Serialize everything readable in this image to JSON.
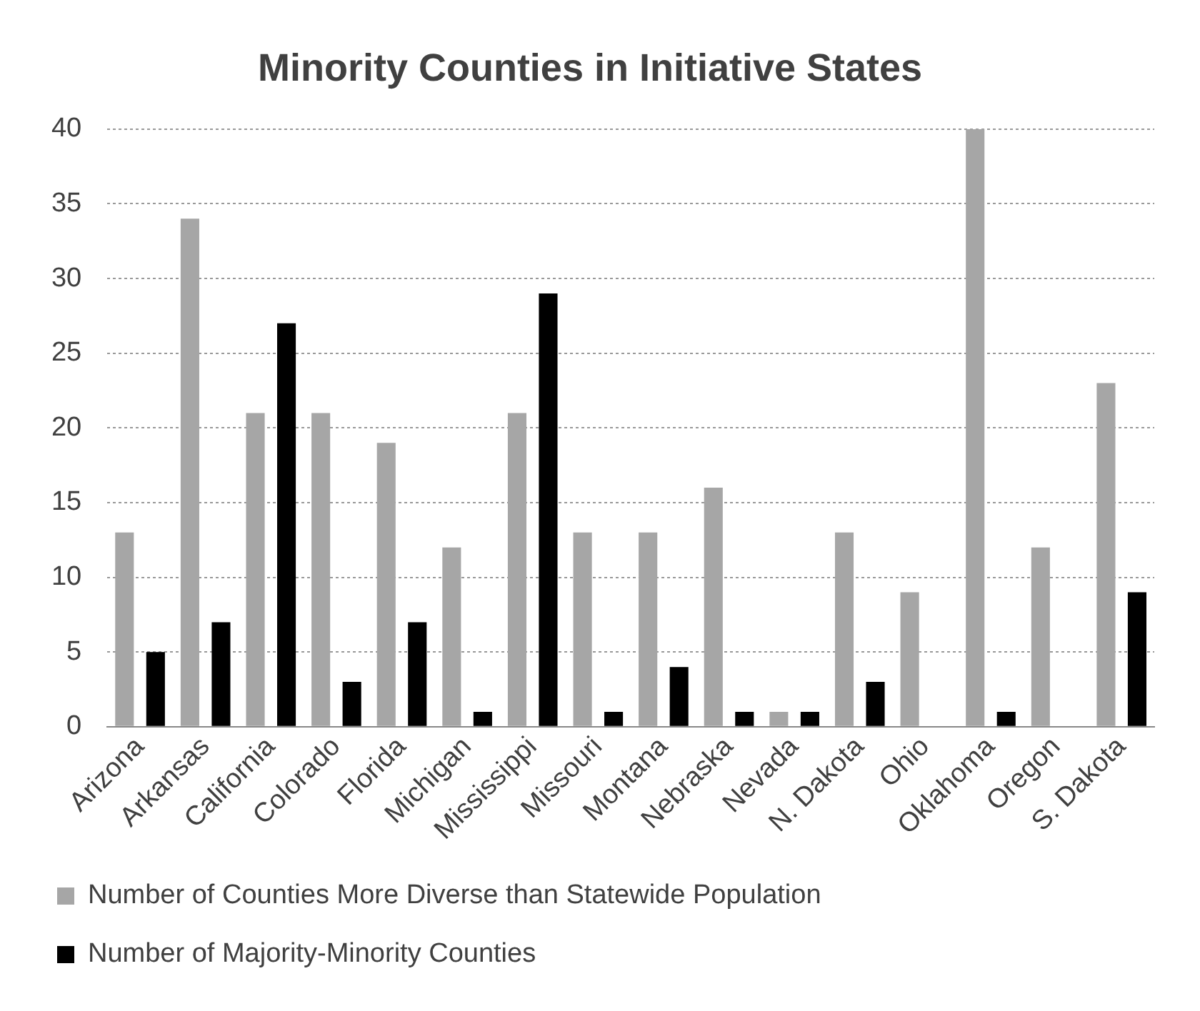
{
  "chart_data": {
    "type": "bar",
    "title": "Minority Counties in Initiative States",
    "categories": [
      "Arizona",
      "Arkansas",
      "California",
      "Colorado",
      "Florida",
      "Michigan",
      "Mississippi",
      "Missouri",
      "Montana",
      "Nebraska",
      "Nevada",
      "N. Dakota",
      "Ohio",
      "Oklahoma",
      "Oregon",
      "S. Dakota"
    ],
    "series": [
      {
        "name": "Number of Counties More Diverse than Statewide Population",
        "color": "#a6a6a6",
        "values": [
          13,
          34,
          21,
          21,
          19,
          12,
          21,
          13,
          13,
          16,
          1,
          13,
          9,
          40,
          12,
          23
        ]
      },
      {
        "name": "Number of Majority-Minority Counties",
        "color": "#000000",
        "values": [
          5,
          7,
          27,
          3,
          7,
          1,
          29,
          1,
          4,
          1,
          1,
          3,
          0,
          1,
          0,
          9
        ]
      }
    ],
    "ylim": [
      0,
      40
    ],
    "yticks": [
      0,
      5,
      10,
      15,
      20,
      25,
      30,
      35,
      40
    ],
    "grid": "y",
    "legend": "bottom"
  }
}
